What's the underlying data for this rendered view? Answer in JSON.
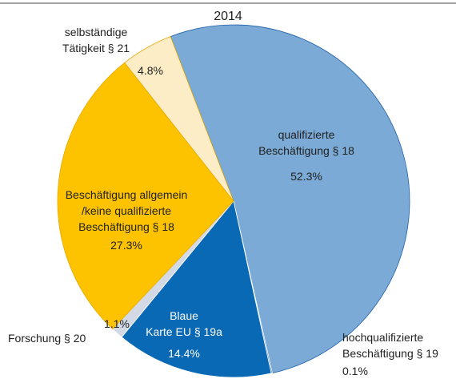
{
  "chart_data": {
    "type": "pie",
    "title": "2014",
    "categories": [
      "qualifizierte\nBeschäftigung § 18",
      "hochqualifizierte\nBeschäftigung § 19",
      "Blaue\nKarte EU § 19a",
      "Forschung § 20",
      "Beschäftigung allgemein\n/keine qualifizierte\nBeschäftigung § 18",
      "selbständige\nTätigkeit § 21"
    ],
    "values": [
      52.3,
      0.1,
      14.4,
      1.1,
      27.3,
      4.8
    ],
    "value_labels": [
      "52.3%",
      "0.1%",
      "14.4%",
      "1.1%",
      "27.3%",
      "4.8%"
    ],
    "colors": [
      "#7aaad5",
      "#1a5aa0",
      "#0a69b5",
      "#d3dae6",
      "#fdc300",
      "#fcedc6"
    ]
  }
}
